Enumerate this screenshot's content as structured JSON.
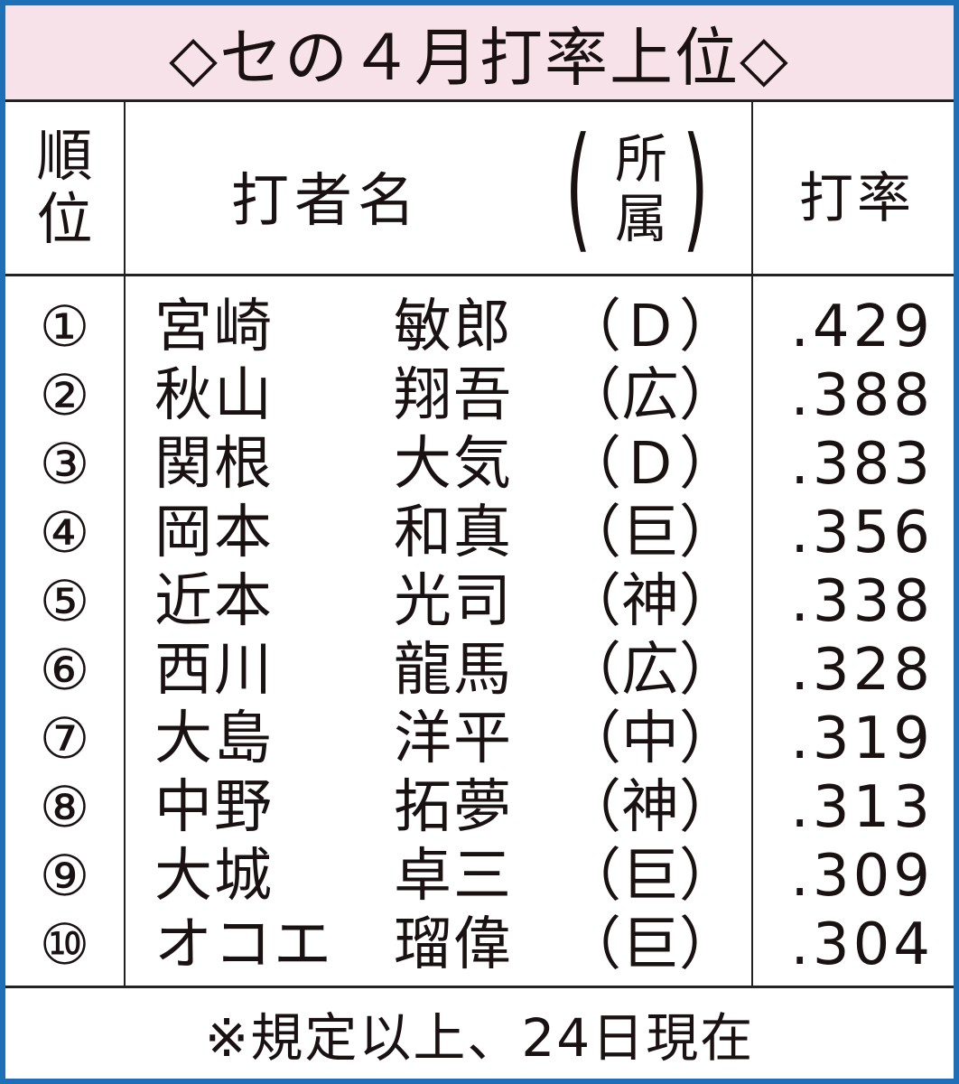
{
  "title": "◇セの４月打率上位◇",
  "header": {
    "rank": [
      "順",
      "位"
    ],
    "name": "打者名",
    "team": [
      "所",
      "属"
    ],
    "avg": "打率"
  },
  "rows": [
    {
      "rank": "①",
      "surname": "宮崎",
      "given": "敏郎",
      "team": "（Ｄ）",
      "avg": ".429"
    },
    {
      "rank": "②",
      "surname": "秋山",
      "given": "翔吾",
      "team": "（広）",
      "avg": ".388"
    },
    {
      "rank": "③",
      "surname": "関根",
      "given": "大気",
      "team": "（Ｄ）",
      "avg": ".383"
    },
    {
      "rank": "④",
      "surname": "岡本",
      "given": "和真",
      "team": "（巨）",
      "avg": ".356"
    },
    {
      "rank": "⑤",
      "surname": "近本",
      "given": "光司",
      "team": "（神）",
      "avg": ".338"
    },
    {
      "rank": "⑥",
      "surname": "西川",
      "given": "龍馬",
      "team": "（広）",
      "avg": ".328"
    },
    {
      "rank": "⑦",
      "surname": "大島",
      "given": "洋平",
      "team": "（中）",
      "avg": ".319"
    },
    {
      "rank": "⑧",
      "surname": "中野",
      "given": "拓夢",
      "team": "（神）",
      "avg": ".313"
    },
    {
      "rank": "⑨",
      "surname": "大城",
      "given": "卓三",
      "team": "（巨）",
      "avg": ".309"
    },
    {
      "rank": "⑩",
      "surname": "オコエ",
      "given": "瑠偉",
      "team": "（巨）",
      "avg": ".304"
    }
  ],
  "footer": "※規定以上、24日現在",
  "colors": {
    "border": "#1d6fb8",
    "title_bg": "#f8e2e9",
    "text": "#1a1212"
  }
}
